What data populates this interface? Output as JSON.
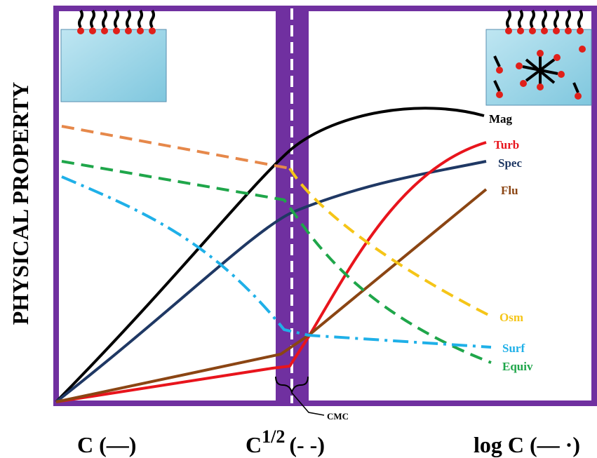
{
  "y_axis_label": "PHYSICAL PROPERTY",
  "curve_labels": {
    "mag": "Mag",
    "turb": "Turb",
    "spec": "Spec",
    "flu": "Flu",
    "osm": "Osm",
    "surf": "Surf",
    "equiv": "Equiv"
  },
  "cmc_label": "CMC",
  "x_labels": {
    "linear": "C (—)",
    "sqrt_base": "C",
    "sqrt_exp": "1/2",
    "sqrt_key": "(- -)",
    "log": "log C (— ·)"
  }
}
